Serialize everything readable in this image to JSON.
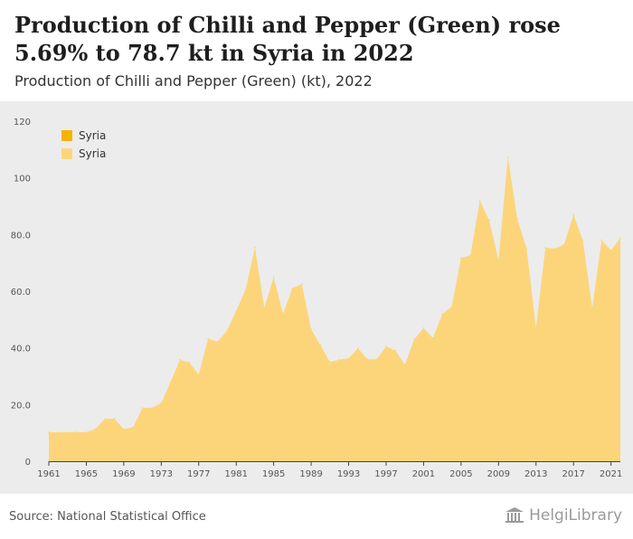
{
  "header": {
    "title": "Production of Chilli and Pepper (Green) rose 5.69% to 78.7 kt in Syria in 2022",
    "subtitle": "Production of Chilli and Pepper (Green) (kt), 2022"
  },
  "legend": {
    "items": [
      {
        "label": "Syria",
        "color": "#f5b201"
      },
      {
        "label": "Syria",
        "color": "#fcd57b"
      }
    ]
  },
  "footer": {
    "source": "Source: National Statistical Office",
    "brand": "HelgiLibrary"
  },
  "chart_data": {
    "type": "area",
    "title": "Production of Chilli and Pepper (Green) rose 5.69% to 78.7 kt in Syria in 2022",
    "subtitle": "Production of Chilli and Pepper (Green) (kt), 2022",
    "xlabel": "",
    "ylabel": "",
    "ylim": [
      0,
      120
    ],
    "yticks": [
      0,
      20,
      40,
      60,
      80,
      100,
      120
    ],
    "ytick_labels": [
      "0",
      "20.0",
      "40.0",
      "60.0",
      "80.0",
      "100",
      "120"
    ],
    "xlim": [
      1961,
      2022
    ],
    "xticks": [
      1961,
      1965,
      1969,
      1973,
      1977,
      1981,
      1985,
      1989,
      1993,
      1997,
      2001,
      2005,
      2009,
      2013,
      2017,
      2021
    ],
    "grid": false,
    "legend_position": "top-left",
    "fill_color": "#fcd57b",
    "series": [
      {
        "name": "Syria",
        "x": [
          1961,
          1962,
          1963,
          1964,
          1965,
          1966,
          1967,
          1968,
          1969,
          1970,
          1971,
          1972,
          1973,
          1974,
          1975,
          1976,
          1977,
          1978,
          1979,
          1980,
          1981,
          1982,
          1983,
          1984,
          1985,
          1986,
          1987,
          1988,
          1989,
          1990,
          1991,
          1992,
          1993,
          1994,
          1995,
          1996,
          1997,
          1998,
          1999,
          2000,
          2001,
          2002,
          2003,
          2004,
          2005,
          2006,
          2007,
          2008,
          2009,
          2010,
          2011,
          2012,
          2013,
          2014,
          2015,
          2016,
          2017,
          2018,
          2019,
          2020,
          2021,
          2022
        ],
        "values": [
          10.2,
          10.2,
          10.2,
          10.3,
          10.2,
          11.5,
          15.0,
          15.0,
          11.3,
          12.0,
          18.8,
          18.8,
          20.5,
          28.0,
          35.8,
          34.8,
          30.5,
          43.2,
          42.2,
          46.0,
          53.0,
          60.5,
          75.5,
          54.0,
          65.0,
          52.0,
          61.0,
          62.5,
          46.5,
          41.0,
          35.0,
          35.8,
          36.3,
          39.8,
          36.0,
          36.0,
          40.5,
          39.0,
          34.0,
          43.0,
          47.0,
          43.5,
          52.0,
          54.5,
          71.8,
          72.6,
          92.0,
          85.0,
          71.0,
          107.3,
          85.5,
          75.0,
          47.0,
          75.3,
          75.0,
          76.5,
          87.0,
          78.0,
          54.0,
          78.0,
          74.5,
          78.7
        ]
      }
    ]
  }
}
